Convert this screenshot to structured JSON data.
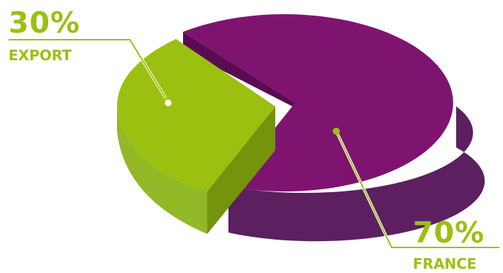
{
  "chart_data": {
    "type": "pie",
    "title": "",
    "slices": [
      {
        "label": "EXPORT",
        "value": 30,
        "value_label": "30%",
        "color": "#9bc010"
      },
      {
        "label": "FRANCE",
        "value": 70,
        "value_label": "70%",
        "color": "#7e1470"
      }
    ],
    "exploded": "EXPORT",
    "three_d": true,
    "legend": "none"
  }
}
